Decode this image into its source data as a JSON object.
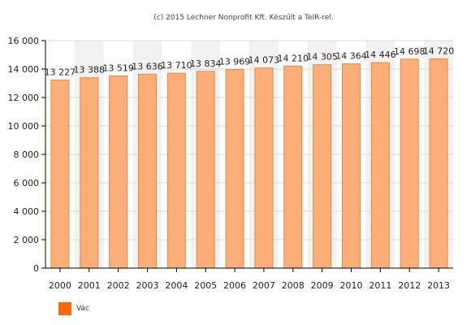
{
  "credit": "(c) 2015 Lechner Nonprofit Kft. Készült a TeIR-rel.",
  "colors": {
    "bar_fill": "#fbae77",
    "bar_stroke": "#e9873f",
    "legend_swatch": "#f7670d",
    "band": "#f2f2f2",
    "grid": "#d9d9d9"
  },
  "chart_data": {
    "type": "bar",
    "title": "",
    "xlabel": "",
    "ylabel": "",
    "ylim": [
      0,
      16000
    ],
    "yticks": [
      0,
      2000,
      4000,
      6000,
      8000,
      10000,
      12000,
      14000,
      16000
    ],
    "ytick_labels": [
      "0",
      "2 000",
      "4 000",
      "6 000",
      "8 000",
      "10 000",
      "12 000",
      "14 000",
      "16 000"
    ],
    "categories": [
      "2000",
      "2001",
      "2002",
      "2003",
      "2004",
      "2005",
      "2006",
      "2007",
      "2008",
      "2009",
      "2010",
      "2011",
      "2012",
      "2013"
    ],
    "series": [
      {
        "name": "Vác",
        "values": [
          13227,
          13388,
          13519,
          13636,
          13710,
          13834,
          13969,
          14073,
          14210,
          14305,
          14364,
          14446,
          14698,
          14720
        ],
        "labels": [
          "13 227",
          "13 388",
          "13 519",
          "13 636",
          "13 710",
          "13 834",
          "13 969",
          "14 073",
          "14 210",
          "14 305",
          "14 364",
          "14 446",
          "14 698",
          "14 720"
        ]
      }
    ],
    "grid": true,
    "legend_position": "bottom-left"
  }
}
